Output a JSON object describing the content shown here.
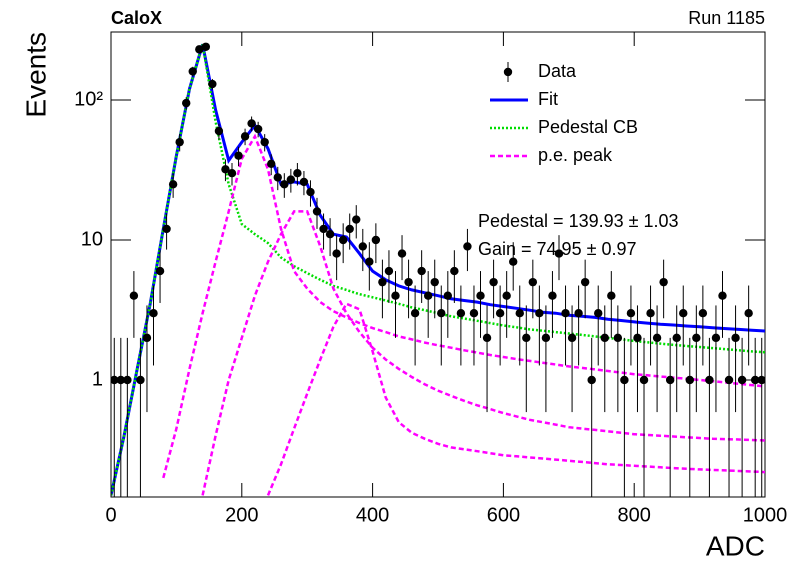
{
  "chart_data": {
    "type": "histogram-fit",
    "label_left": "CaloX",
    "label_right": "Run 1185",
    "xlabel": "ADC",
    "ylabel": "Events",
    "log_y": true,
    "xlim": [
      0,
      1000
    ],
    "ylim": [
      0.146,
      306
    ],
    "xticks": [
      0,
      200,
      400,
      600,
      800,
      1000
    ],
    "yticks": [
      1,
      10,
      {
        "value": 100,
        "label": "10²"
      }
    ],
    "annotations": [
      "Pedestal = 139.93 ± 1.03",
      "Gain = 74.95 ± 0.97"
    ],
    "legend": "top-right",
    "curve_x": [
      0,
      20,
      40,
      60,
      80,
      100,
      120,
      140,
      160,
      180,
      200,
      220,
      240,
      260,
      280,
      300,
      320,
      340,
      360,
      380,
      400,
      420,
      440,
      460,
      480,
      500,
      520,
      540,
      560,
      580,
      600,
      620,
      640,
      660,
      680,
      700,
      720,
      740,
      760,
      780,
      800,
      820,
      840,
      860,
      880,
      900,
      920,
      940,
      960,
      980,
      1000
    ],
    "series": [
      {
        "name": "Data",
        "color": "#000000",
        "style": "points",
        "x": [
          5,
          15,
          25,
          35,
          45,
          55,
          65,
          75,
          85,
          95,
          105,
          115,
          125,
          135,
          145,
          155,
          165,
          175,
          185,
          195,
          205,
          215,
          225,
          235,
          245,
          255,
          265,
          275,
          285,
          295,
          305,
          315,
          325,
          335,
          345,
          355,
          365,
          375,
          385,
          395,
          405,
          415,
          425,
          435,
          445,
          455,
          465,
          475,
          485,
          495,
          505,
          515,
          525,
          535,
          545,
          555,
          565,
          575,
          585,
          595,
          605,
          615,
          625,
          635,
          645,
          655,
          665,
          675,
          685,
          695,
          705,
          715,
          725,
          735,
          745,
          755,
          765,
          775,
          785,
          795,
          805,
          815,
          825,
          835,
          845,
          855,
          865,
          875,
          885,
          895,
          905,
          915,
          925,
          935,
          945,
          955,
          965,
          975,
          985,
          995
        ],
        "values": [
          1,
          1,
          1,
          4,
          1,
          2,
          3,
          6,
          12,
          25,
          50,
          95,
          160,
          230,
          240,
          130,
          60,
          32,
          30,
          40,
          55,
          68,
          62,
          50,
          35,
          28,
          25,
          27,
          30,
          26,
          22,
          16,
          12,
          11,
          8,
          10,
          12,
          14,
          9,
          7,
          10,
          5,
          6,
          4,
          8,
          5,
          3,
          6,
          4,
          5,
          3,
          4,
          6,
          3,
          9,
          3,
          4,
          2,
          5,
          3,
          4,
          7,
          3,
          2,
          5,
          3,
          2,
          4,
          8,
          3,
          2,
          3,
          5,
          1,
          3,
          2,
          4,
          2,
          1,
          3,
          2,
          1,
          3,
          2,
          5,
          1,
          2,
          3,
          1,
          2,
          3,
          1,
          2,
          4,
          1,
          2,
          1,
          3,
          1,
          1
        ],
        "errors": [
          1,
          1,
          1,
          2,
          1,
          1.41,
          1.73,
          2.45,
          3.46,
          5,
          7.07,
          9.75,
          12.65,
          15.17,
          15.49,
          11.4,
          7.75,
          5.66,
          5.48,
          6.32,
          7.42,
          8.25,
          7.87,
          7.07,
          5.92,
          5.29,
          5,
          5.2,
          5.48,
          5.1,
          4.69,
          4,
          3.46,
          3.32,
          2.83,
          3.16,
          3.46,
          3.74,
          3,
          2.65,
          3.16,
          2.24,
          2.45,
          2,
          2.83,
          2.24,
          1.73,
          2.45,
          2,
          2.24,
          1.73,
          2,
          2.45,
          1.73,
          3,
          1.73,
          2,
          1.41,
          2.24,
          1.73,
          2,
          2.65,
          1.73,
          1.41,
          2.24,
          1.73,
          1.41,
          2,
          2.83,
          1.73,
          1.41,
          1.73,
          2.24,
          1,
          1.73,
          1.41,
          2,
          1.41,
          1,
          1.73,
          1.41,
          1,
          1.73,
          1.41,
          2.24,
          1,
          1.41,
          1.73,
          1,
          1.41,
          1.73,
          1,
          1.41,
          2,
          1,
          1.41,
          1,
          1.73,
          1,
          1
        ]
      },
      {
        "name": "Fit",
        "color": "#0000ff",
        "style": "solid",
        "values": [
          0.15,
          0.4,
          1.2,
          3.5,
          12,
          40,
          120,
          250,
          85,
          37,
          50,
          66,
          45,
          25,
          26,
          25,
          15,
          11,
          10.5,
          8,
          6,
          5.2,
          4.7,
          4.4,
          4.2,
          4.0,
          3.8,
          3.7,
          3.6,
          3.45,
          3.35,
          3.25,
          3.15,
          3.05,
          3.0,
          2.9,
          2.85,
          2.8,
          2.72,
          2.66,
          2.6,
          2.55,
          2.5,
          2.47,
          2.43,
          2.4,
          2.36,
          2.33,
          2.3,
          2.27,
          2.24
        ]
      },
      {
        "name": "Pedestal CB",
        "color": "#00dd00",
        "style": "dotted",
        "values": [
          0.15,
          0.4,
          1.2,
          3.5,
          12,
          40,
          120,
          250,
          70,
          25,
          13,
          11,
          9.5,
          7.5,
          6.5,
          5.8,
          5.2,
          4.7,
          4.4,
          4.1,
          3.9,
          3.7,
          3.5,
          3.3,
          3.15,
          3.0,
          2.85,
          2.75,
          2.65,
          2.55,
          2.45,
          2.38,
          2.3,
          2.25,
          2.2,
          2.15,
          2.1,
          2.05,
          2.0,
          1.95,
          1.9,
          1.86,
          1.82,
          1.78,
          1.75,
          1.72,
          1.69,
          1.66,
          1.63,
          1.6,
          1.58
        ]
      },
      {
        "name": "p.e. peak",
        "color": "#ff00ff",
        "style": "dashed",
        "curves": [
          [
            null,
            null,
            null,
            null,
            0.2,
            0.45,
            1.2,
            3,
            7,
            16,
            38,
            55,
            32,
            12,
            6,
            4.5,
            3.6,
            3.1,
            2.8,
            2.55,
            2.35,
            2.2,
            2.05,
            1.95,
            1.85,
            1.77,
            1.7,
            1.63,
            1.57,
            1.51,
            1.46,
            1.41,
            1.37,
            1.33,
            1.29,
            1.25,
            1.22,
            1.19,
            1.16,
            1.13,
            1.1,
            1.08,
            1.06,
            1.04,
            1.02,
            1.0,
            0.98,
            0.96,
            0.94,
            0.92,
            0.9
          ],
          [
            null,
            null,
            null,
            null,
            null,
            null,
            null,
            0.15,
            0.4,
            1,
            2,
            4,
            7,
            11,
            16,
            16,
            9,
            4.5,
            3,
            2.2,
            1.7,
            1.4,
            1.2,
            1.05,
            0.93,
            0.84,
            0.77,
            0.71,
            0.66,
            0.62,
            0.58,
            0.55,
            0.52,
            0.5,
            0.48,
            0.46,
            0.45,
            0.44,
            0.43,
            0.42,
            0.41,
            0.405,
            0.4,
            0.395,
            0.39,
            0.385,
            0.38,
            0.378,
            0.376,
            0.373,
            0.37
          ],
          [
            null,
            null,
            null,
            null,
            null,
            null,
            null,
            null,
            null,
            null,
            null,
            null,
            0.15,
            0.25,
            0.45,
            0.8,
            1.4,
            2.4,
            3.5,
            3.2,
            1.6,
            0.75,
            0.5,
            0.42,
            0.38,
            0.35,
            0.33,
            0.32,
            0.31,
            0.3,
            0.29,
            0.285,
            0.28,
            0.275,
            0.27,
            0.265,
            0.26,
            0.255,
            0.25,
            0.247,
            0.244,
            0.241,
            0.238,
            0.235,
            0.232,
            0.23,
            0.228,
            0.226,
            0.224,
            0.222,
            0.22
          ]
        ]
      }
    ]
  }
}
